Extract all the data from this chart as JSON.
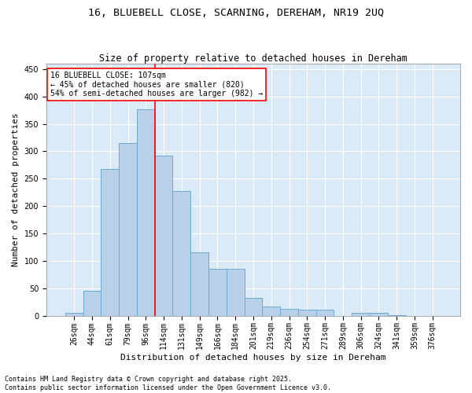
{
  "title": "16, BLUEBELL CLOSE, SCARNING, DEREHAM, NR19 2UQ",
  "subtitle": "Size of property relative to detached houses in Dereham",
  "xlabel": "Distribution of detached houses by size in Dereham",
  "ylabel": "Number of detached properties",
  "bar_values": [
    5,
    45,
    268,
    315,
    377,
    292,
    227,
    115,
    85,
    85,
    33,
    16,
    12,
    11,
    11,
    0,
    5,
    5,
    1,
    0,
    0
  ],
  "categories": [
    "26sqm",
    "44sqm",
    "61sqm",
    "79sqm",
    "96sqm",
    "114sqm",
    "131sqm",
    "149sqm",
    "166sqm",
    "184sqm",
    "201sqm",
    "219sqm",
    "236sqm",
    "254sqm",
    "271sqm",
    "289sqm",
    "306sqm",
    "324sqm",
    "341sqm",
    "359sqm",
    "376sqm"
  ],
  "bar_color": "#b8d0e8",
  "bar_edge_color": "#6aaad4",
  "vline_x": 4.5,
  "vline_color": "red",
  "annotation_text": "16 BLUEBELL CLOSE: 107sqm\n← 45% of detached houses are smaller (820)\n54% of semi-detached houses are larger (982) →",
  "annotation_box_color": "white",
  "annotation_box_edge": "red",
  "ylim": [
    0,
    460
  ],
  "yticks": [
    0,
    50,
    100,
    150,
    200,
    250,
    300,
    350,
    400,
    450
  ],
  "background_color": "#daeaf6",
  "footer_line1": "Contains HM Land Registry data © Crown copyright and database right 2025.",
  "footer_line2": "Contains public sector information licensed under the Open Government Licence v3.0.",
  "title_fontsize": 9.5,
  "subtitle_fontsize": 8.5,
  "xlabel_fontsize": 8,
  "ylabel_fontsize": 8,
  "tick_fontsize": 7,
  "annotation_fontsize": 7,
  "footer_fontsize": 6
}
